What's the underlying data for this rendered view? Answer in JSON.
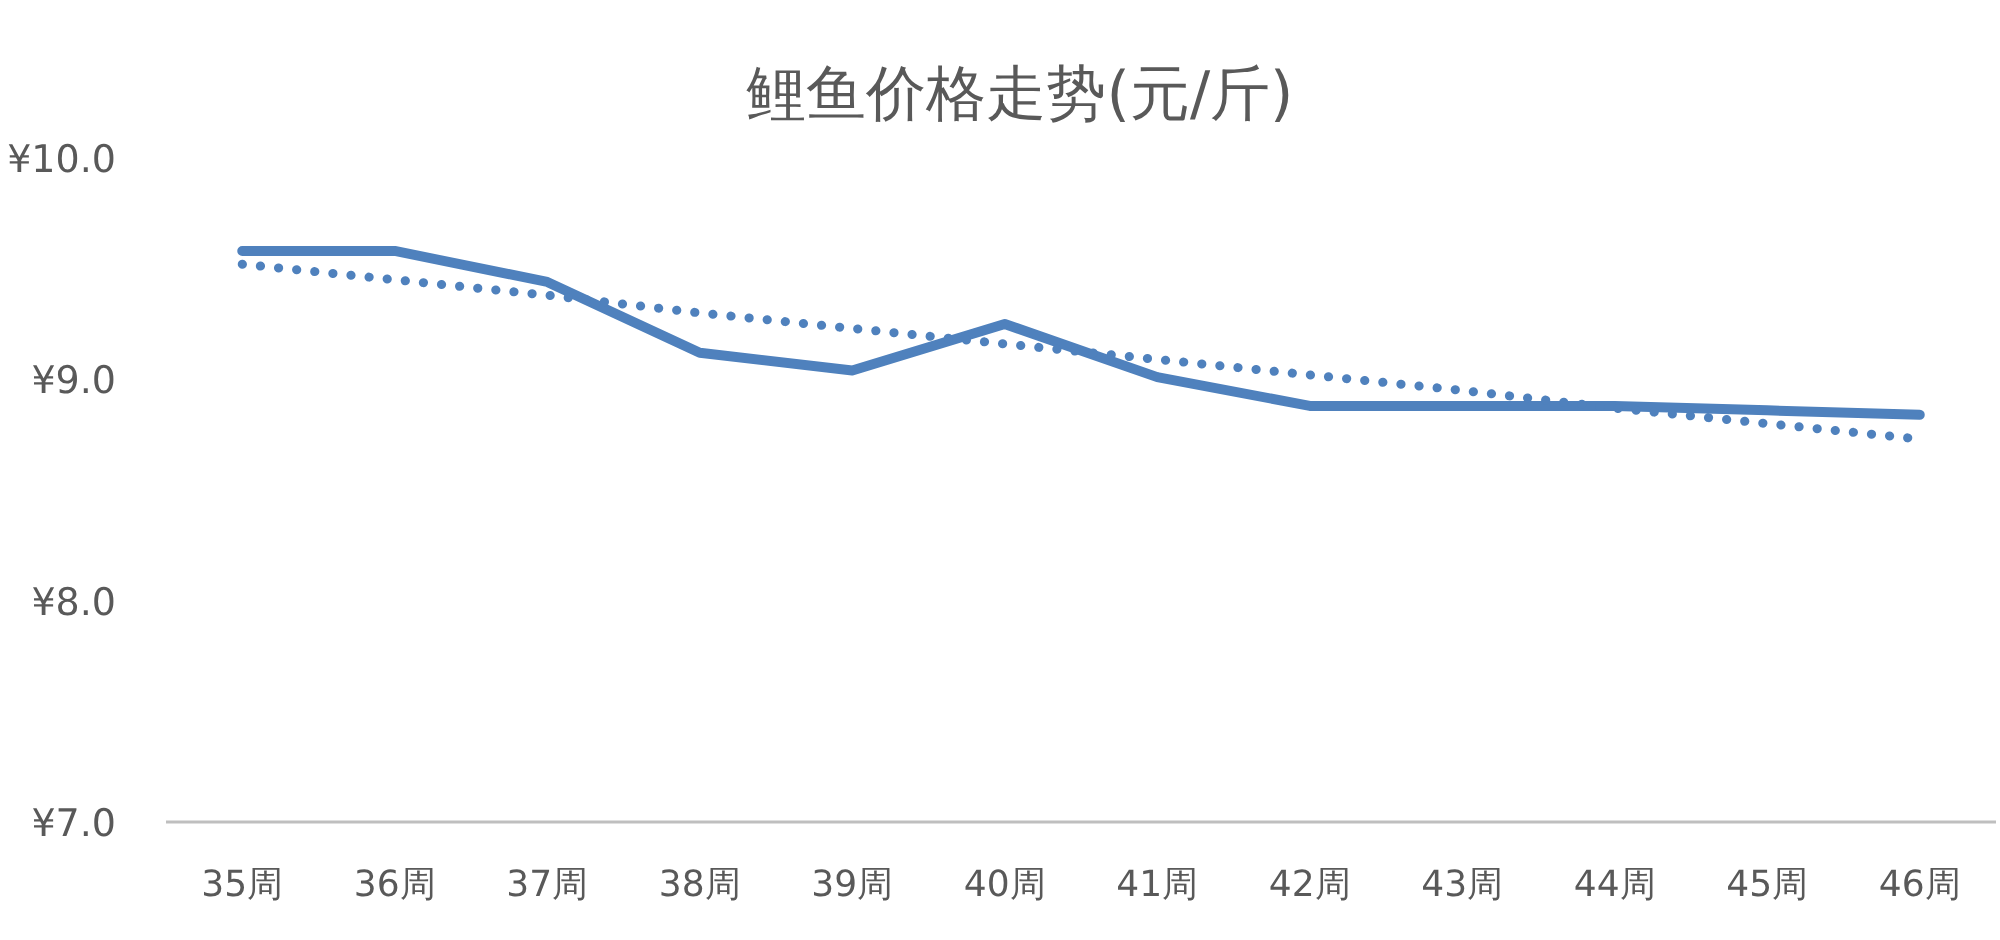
{
  "chart_data": {
    "type": "line",
    "title": "鲤鱼价格走势(元/斤)",
    "categories": [
      "35周",
      "36周",
      "37周",
      "38周",
      "39周",
      "40周",
      "41周",
      "42周",
      "43周",
      "44周",
      "45周",
      "46周"
    ],
    "series": [
      {
        "color": "#4f81bd",
        "line_style": "solid",
        "values": [
          9.58,
          9.58,
          9.44,
          9.12,
          9.04,
          9.25,
          9.01,
          8.88,
          8.88,
          8.88,
          8.86,
          8.84
        ]
      },
      {
        "color": "#4f81bd",
        "line_style": "dotted",
        "values": [
          9.52,
          9.45,
          9.38,
          9.3,
          9.23,
          9.16,
          9.09,
          9.02,
          8.95,
          8.87,
          8.8,
          8.73
        ]
      }
    ],
    "ylim": [
      7,
      10
    ],
    "yticks": [
      {
        "value": 7,
        "label": "¥7.0"
      },
      {
        "value": 8,
        "label": "¥8.0"
      },
      {
        "value": 9,
        "label": "¥9.0"
      },
      {
        "value": 10,
        "label": "¥10.0"
      }
    ],
    "grid": false,
    "marker": "none"
  }
}
